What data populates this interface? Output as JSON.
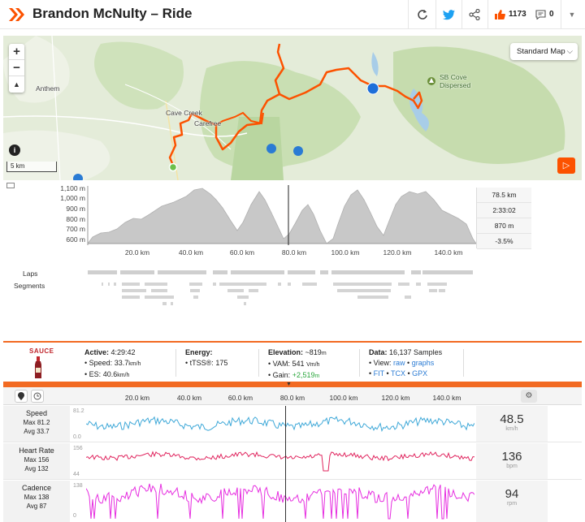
{
  "header": {
    "title": "Brandon McNulty – Ride",
    "kudos": "1173",
    "comments": "0",
    "brand_color": "#fc5200"
  },
  "map": {
    "style_select": "Standard Map",
    "scale": "5 km",
    "places": [
      "Anthem",
      "Cave Creek",
      "Carefree",
      "SB Cove Dispersed"
    ]
  },
  "elevation": {
    "y_ticks": [
      "1,100 m",
      "1,000 m",
      "900 m",
      "800 m",
      "700 m",
      "600 m"
    ],
    "x_ticks": [
      "20.0 km",
      "40.0 km",
      "60.0 km",
      "80.0 km",
      "100.0 km",
      "120.0 km",
      "140.0 km"
    ],
    "stats": [
      "78.5 km",
      "2:33:02",
      "870 m",
      "-3.5%"
    ]
  },
  "laps_label": "Laps",
  "segments_label": "Segments",
  "info": {
    "logo": "SAUCE",
    "active": {
      "label": "Active:",
      "value": "4:29:42"
    },
    "speed": {
      "label": "Speed:",
      "value": "33.7",
      "unit": "km/h"
    },
    "es": {
      "label": "ES:",
      "value": "40.6",
      "unit": "km/h"
    },
    "energy": {
      "label": "Energy:"
    },
    "tss": {
      "label": "tTSS®:",
      "value": "175"
    },
    "elevation": {
      "label": "Elevation:",
      "value": "~819",
      "unit": "m"
    },
    "vam": {
      "label": "VAM:",
      "value": "541",
      "unit": "Vm/h"
    },
    "gain": {
      "label": "Gain:",
      "value": "+2,519",
      "unit": "m"
    },
    "data": {
      "label": "Data:",
      "value": "16,137 Samples"
    },
    "view": {
      "label": "View:",
      "raw": "raw",
      "graphs": "graphs"
    },
    "exports": [
      "FIT",
      "TCX",
      "GPX"
    ]
  },
  "streams": {
    "x_ticks": [
      "20.0 km",
      "40.0 km",
      "60.0 km",
      "80.0 km",
      "100.0 km",
      "120.0 km",
      "140.0 km"
    ],
    "metrics": [
      {
        "name": "Speed",
        "max": "Max 81.2",
        "avg": "Avg 33.7",
        "axis_top": "81.2",
        "axis_bottom": "0.0",
        "value": "48.5",
        "unit": "km/h",
        "color": "#3ea8d8"
      },
      {
        "name": "Heart Rate",
        "max": "Max 156",
        "avg": "Avg 132",
        "axis_top": "156",
        "axis_bottom": "44",
        "value": "136",
        "unit": "bpm",
        "color": "#e0245e"
      },
      {
        "name": "Cadence",
        "max": "Max 138",
        "avg": "Avg 87",
        "axis_top": "138",
        "axis_bottom": "0",
        "value": "94",
        "unit": "rpm",
        "color": "#e62ee0"
      }
    ]
  }
}
